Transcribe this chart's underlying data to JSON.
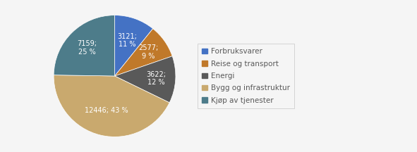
{
  "labels": [
    "Forbruksvarer",
    "Reise og transport",
    "Energi",
    "Bygg og infrastruktur",
    "Kjøp av tjenester"
  ],
  "values": [
    3121,
    2577,
    3622,
    12446,
    7159
  ],
  "colors": [
    "#4472c4",
    "#c0792a",
    "#595959",
    "#c9a96e",
    "#4d7c8a"
  ],
  "autopct_labels": [
    "3121;\n11 %",
    "2577;\n9 %",
    "3622;\n12 %",
    "12446; 43 %",
    "7159;\n25 %"
  ],
  "startangle": 90,
  "background_color": "#f5f5f5",
  "legend_labels": [
    "Forbruksvarer",
    "Reise og transport",
    "Energi",
    "Bygg og infrastruktur",
    "Kjøp av tjenester"
  ],
  "legend_colors": [
    "#4472c4",
    "#c0792a",
    "#595959",
    "#c9a96e",
    "#4d7c8a"
  ],
  "text_color": "#595959",
  "fontsize": 7.0,
  "legend_fontsize": 7.5
}
